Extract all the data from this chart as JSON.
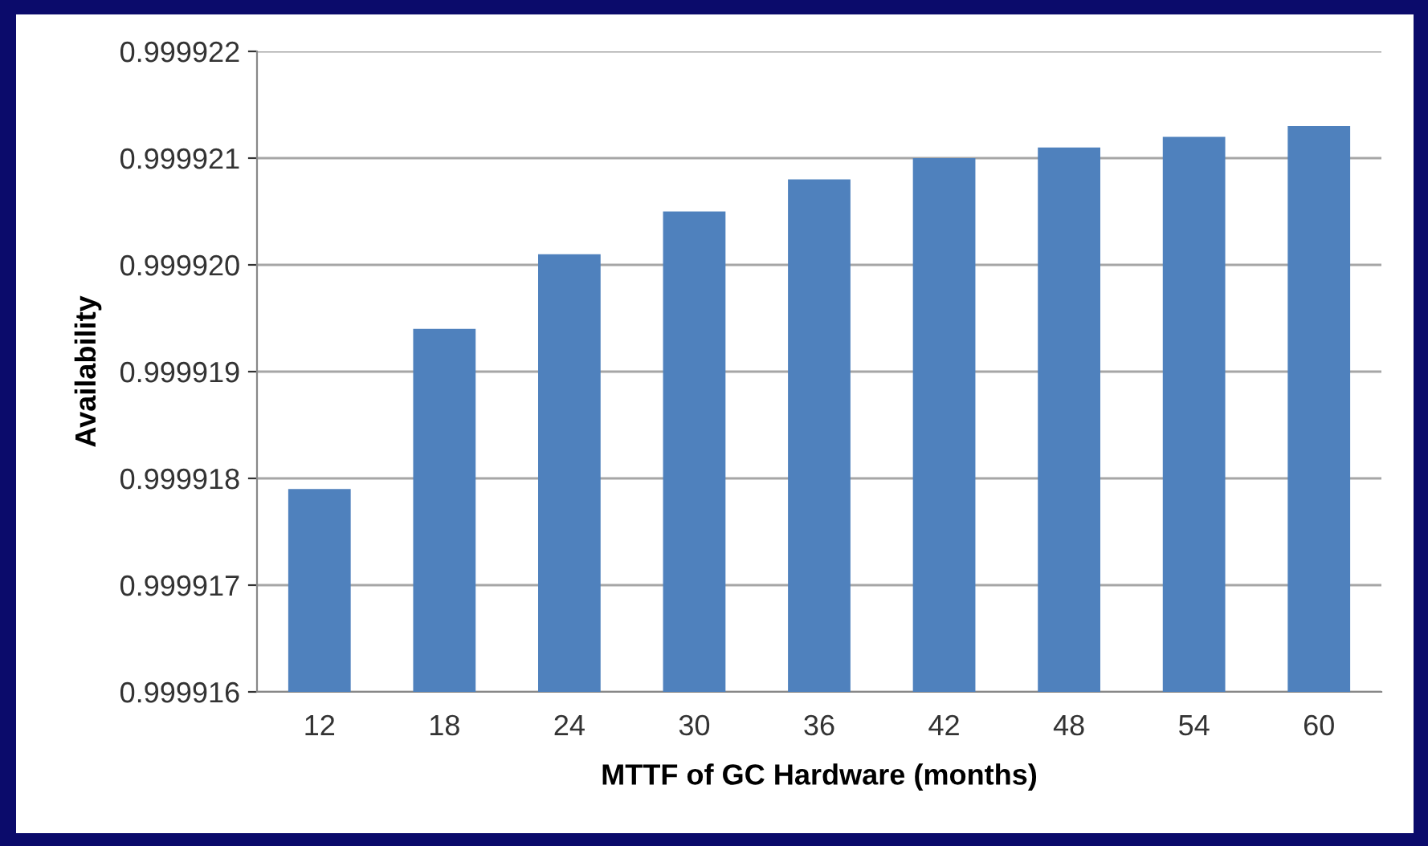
{
  "chart_data": {
    "type": "bar",
    "xlabel": "MTTF of GC Hardware (months)",
    "ylabel": "Availability",
    "categories": [
      "12",
      "18",
      "24",
      "30",
      "36",
      "42",
      "48",
      "54",
      "60"
    ],
    "values": [
      0.9999179,
      0.9999194,
      0.9999201,
      0.9999205,
      0.9999208,
      0.999921,
      0.9999211,
      0.9999212,
      0.9999213
    ],
    "color": "#4f81bd",
    "ylim": [
      0.999916,
      0.999922
    ],
    "yticks": [
      {
        "value": 0.999916,
        "label": "0.999916"
      },
      {
        "value": 0.999917,
        "label": "0.999917"
      },
      {
        "value": 0.999918,
        "label": "0.999918"
      },
      {
        "value": 0.999919,
        "label": "0.999919"
      },
      {
        "value": 0.99992,
        "label": "0.999920"
      },
      {
        "value": 0.999921,
        "label": "0.999921"
      },
      {
        "value": 0.999922,
        "label": "0.999922"
      }
    ],
    "grid": "y"
  }
}
